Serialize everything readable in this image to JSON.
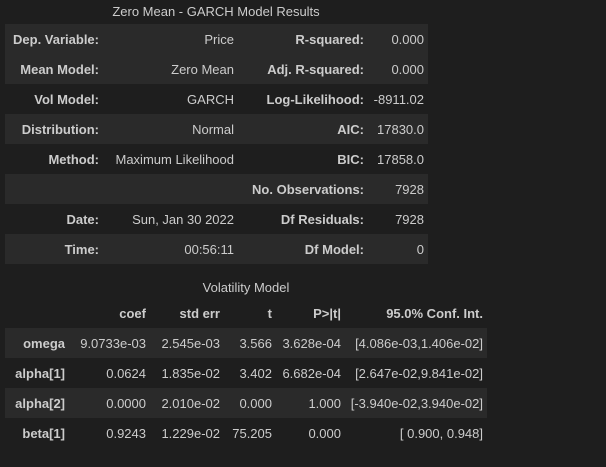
{
  "title": "Zero Mean - GARCH Model Results",
  "summary_rows": [
    {
      "l1": "Dep. Variable:",
      "v1": "Price",
      "l2": "R-squared:",
      "v2": "0.000"
    },
    {
      "l1": "Mean Model:",
      "v1": "Zero Mean",
      "l2": "Adj. R-squared:",
      "v2": "0.000"
    },
    {
      "l1": "Vol Model:",
      "v1": "GARCH",
      "l2": "Log-Likelihood:",
      "v2": "-8911.02"
    },
    {
      "l1": "Distribution:",
      "v1": "Normal",
      "l2": "AIC:",
      "v2": "17830.0"
    },
    {
      "l1": "Method:",
      "v1": "Maximum Likelihood",
      "l2": "BIC:",
      "v2": "17858.0"
    },
    {
      "l1": "",
      "v1": "",
      "l2": "No. Observations:",
      "v2": "7928"
    },
    {
      "l1": "Date:",
      "v1": "Sun, Jan 30 2022",
      "l2": "Df Residuals:",
      "v2": "7928"
    },
    {
      "l1": "Time:",
      "v1": "00:56:11",
      "l2": "Df Model:",
      "v2": "0"
    }
  ],
  "volatility": {
    "title": "Volatility Model",
    "headers": [
      "",
      "coef",
      "std err",
      "t",
      "P>|t|",
      "95.0% Conf. Int."
    ],
    "rows": [
      [
        "omega",
        "9.0733e-03",
        "2.545e-03",
        "3.566",
        "3.628e-04",
        "[4.086e-03,1.406e-02]"
      ],
      [
        "alpha[1]",
        "0.0624",
        "1.835e-02",
        "3.402",
        "6.682e-04",
        "[2.647e-02,9.841e-02]"
      ],
      [
        "alpha[2]",
        "0.0000",
        "2.010e-02",
        "0.000",
        "1.000",
        "[-3.940e-02,3.940e-02]"
      ],
      [
        "beta[1]",
        "0.9243",
        "1.229e-02",
        "75.205",
        "0.000",
        "[ 0.900, 0.948]"
      ]
    ]
  }
}
